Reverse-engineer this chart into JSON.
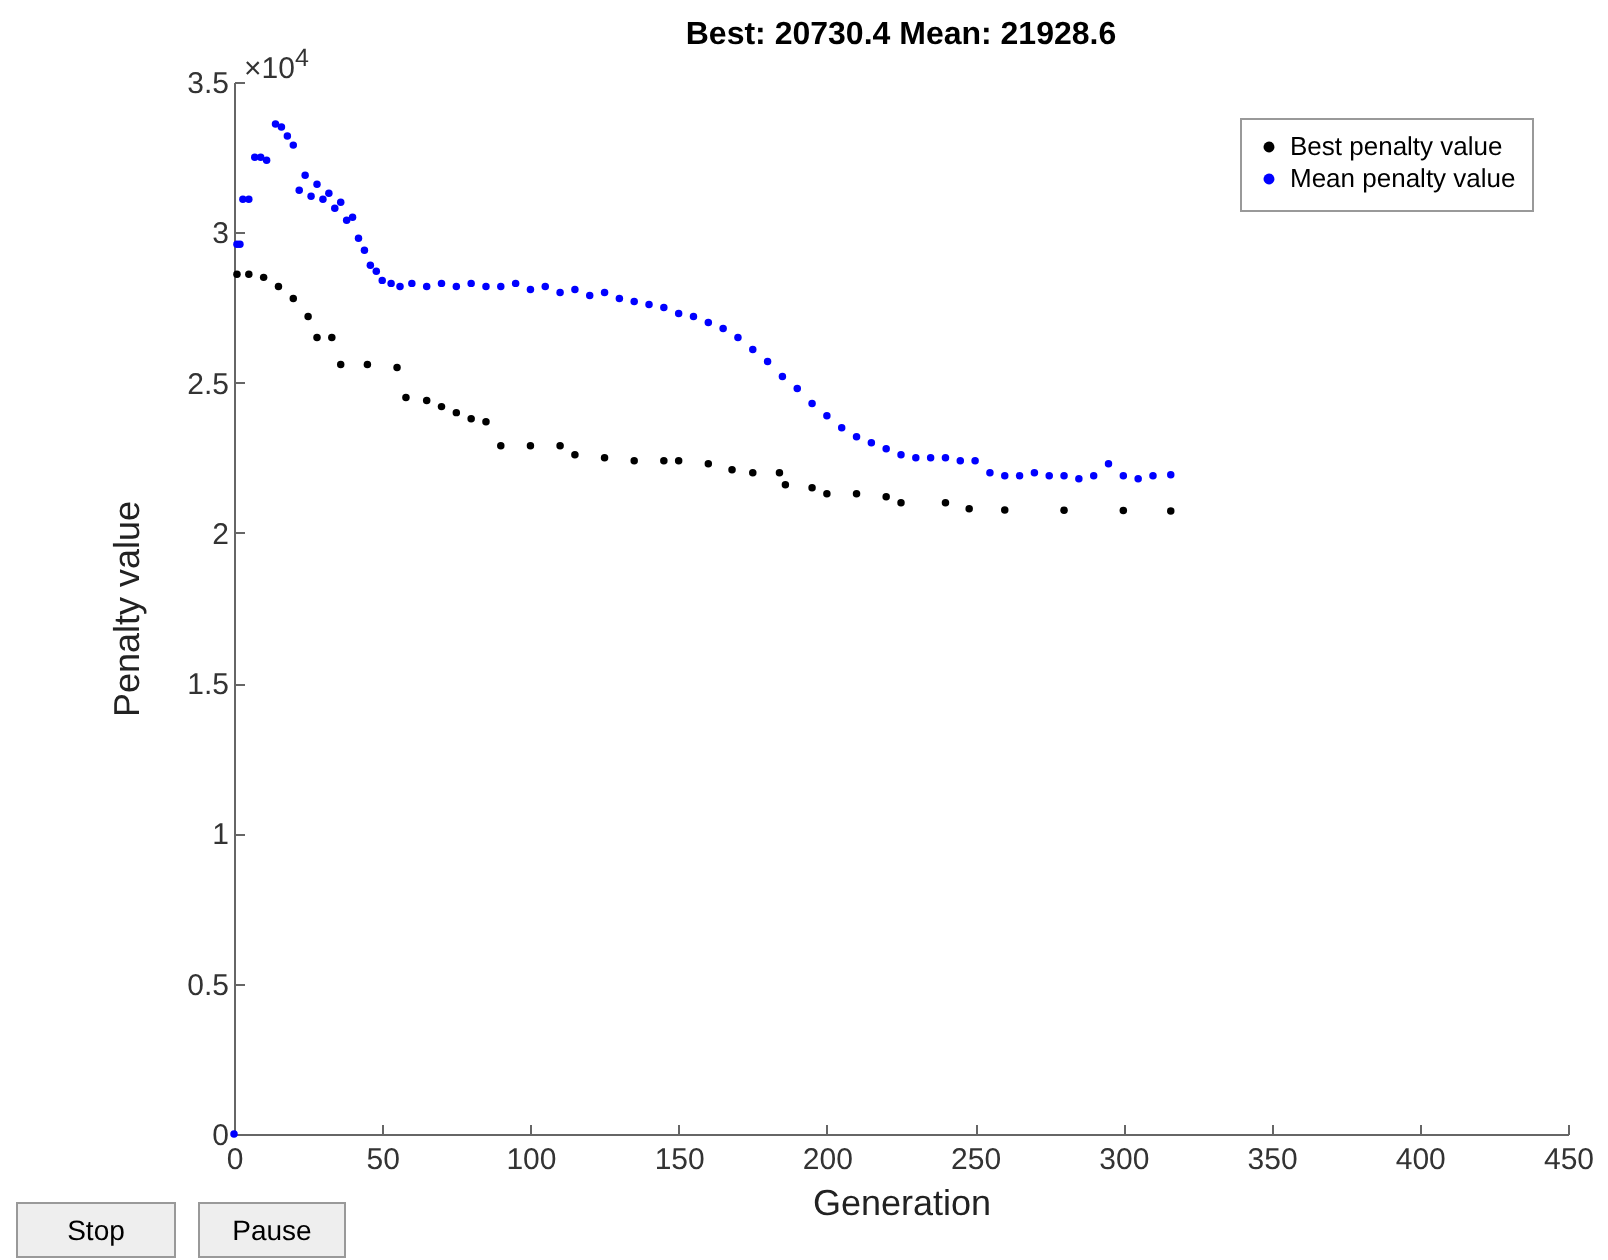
{
  "chart_data": {
    "type": "scatter",
    "title": "Best: 20730.4 Mean: 21928.6",
    "xlabel": "Generation",
    "ylabel": "Penalty value",
    "xlim": [
      0,
      450
    ],
    "xticks": [
      0,
      50,
      100,
      150,
      200,
      250,
      300,
      350,
      400,
      450
    ],
    "ylim": [
      0,
      3.5
    ],
    "yticks": [
      0,
      0.5,
      1,
      1.5,
      2,
      2.5,
      3,
      3.5
    ],
    "annotations": [
      "×10$^{4}$",
      "Stop",
      "Pause"
    ],
    "legend": "top right",
    "marker": "circle",
    "series": [
      {
        "name": "Best penalty value",
        "color": "#000000",
        "x": [
          1,
          5,
          10,
          15,
          20,
          25,
          28,
          33,
          36,
          45,
          55,
          58,
          65,
          70,
          75,
          80,
          85,
          90,
          100,
          110,
          115,
          125,
          135,
          145,
          150,
          160,
          168,
          175,
          184,
          186,
          195,
          200,
          210,
          220,
          225,
          240,
          248,
          260,
          280,
          300,
          316
        ],
        "values": [
          2.86,
          2.86,
          2.85,
          2.82,
          2.78,
          2.72,
          2.65,
          2.65,
          2.56,
          2.56,
          2.55,
          2.45,
          2.44,
          2.42,
          2.4,
          2.38,
          2.37,
          2.29,
          2.29,
          2.29,
          2.26,
          2.25,
          2.24,
          2.24,
          2.24,
          2.23,
          2.21,
          2.2,
          2.2,
          2.16,
          2.15,
          2.13,
          2.13,
          2.12,
          2.1,
          2.1,
          2.08,
          2.076,
          2.075,
          2.074,
          2.073
        ]
      },
      {
        "name": "Mean penalty value",
        "color": "#0000ff",
        "x": [
          0,
          1,
          2,
          3,
          5,
          7,
          9,
          11,
          14,
          16,
          18,
          20,
          22,
          24,
          26,
          28,
          30,
          32,
          34,
          36,
          38,
          40,
          42,
          44,
          46,
          48,
          50,
          53,
          56,
          60,
          65,
          70,
          75,
          80,
          85,
          90,
          95,
          100,
          105,
          110,
          115,
          120,
          125,
          130,
          135,
          140,
          145,
          150,
          155,
          160,
          165,
          170,
          175,
          180,
          185,
          190,
          195,
          200,
          205,
          210,
          215,
          220,
          225,
          230,
          235,
          240,
          245,
          250,
          255,
          260,
          265,
          270,
          275,
          280,
          285,
          290,
          295,
          300,
          305,
          310,
          316
        ],
        "values": [
          0,
          2.96,
          2.96,
          3.11,
          3.11,
          3.25,
          3.25,
          3.24,
          3.36,
          3.35,
          3.32,
          3.29,
          3.14,
          3.19,
          3.12,
          3.16,
          3.11,
          3.13,
          3.08,
          3.1,
          3.04,
          3.05,
          2.98,
          2.94,
          2.89,
          2.87,
          2.84,
          2.83,
          2.82,
          2.83,
          2.82,
          2.83,
          2.82,
          2.83,
          2.82,
          2.82,
          2.83,
          2.81,
          2.82,
          2.8,
          2.81,
          2.79,
          2.8,
          2.78,
          2.77,
          2.76,
          2.75,
          2.73,
          2.72,
          2.7,
          2.68,
          2.65,
          2.61,
          2.57,
          2.52,
          2.48,
          2.43,
          2.39,
          2.35,
          2.32,
          2.3,
          2.28,
          2.26,
          2.25,
          2.25,
          2.25,
          2.24,
          2.24,
          2.2,
          2.19,
          2.19,
          2.2,
          2.19,
          2.19,
          2.18,
          2.19,
          2.23,
          2.19,
          2.18,
          2.19,
          2.193
        ]
      }
    ]
  }
}
